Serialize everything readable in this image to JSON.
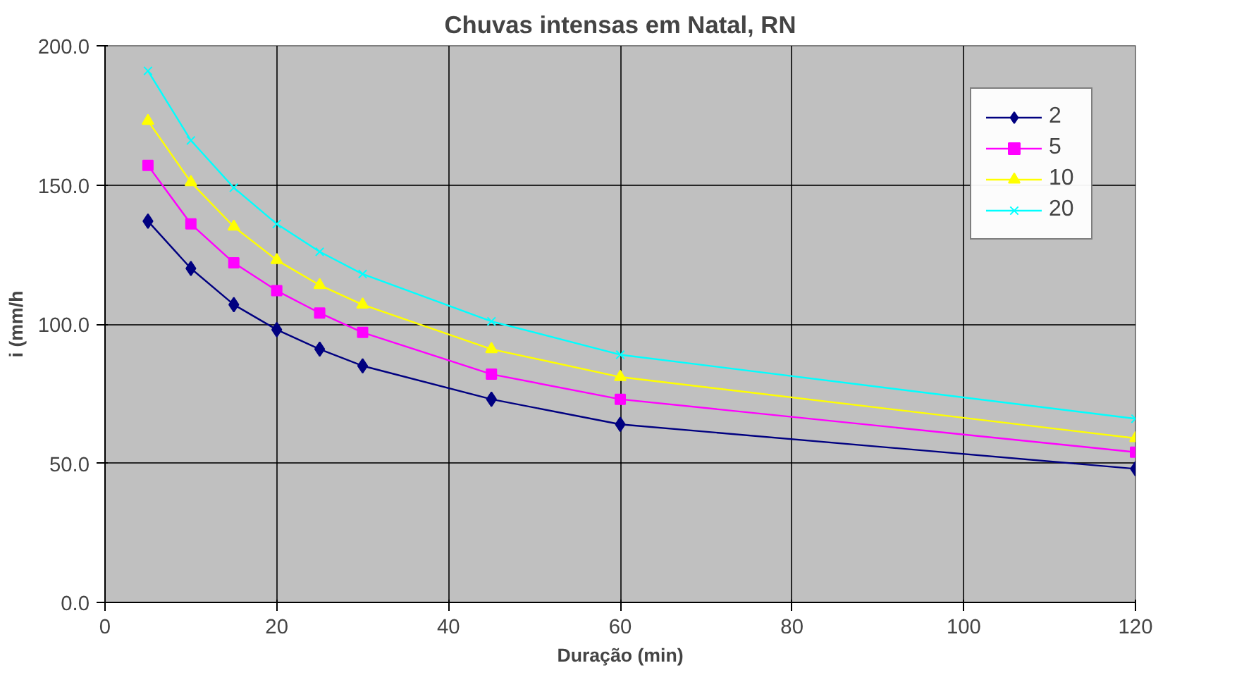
{
  "chart_data": {
    "type": "line",
    "title": "Chuvas intensas em Natal, RN",
    "xlabel": "Duração (min)",
    "ylabel": "i (mm/h",
    "x": [
      5,
      10,
      15,
      20,
      25,
      30,
      45,
      60,
      120
    ],
    "series": [
      {
        "name": "2",
        "color": "#000080",
        "marker": "diamond",
        "values": [
          137,
          120,
          107,
          98,
          91,
          85,
          73,
          64,
          48
        ]
      },
      {
        "name": "5",
        "color": "#ff00ff",
        "marker": "square",
        "values": [
          157,
          136,
          122,
          112,
          104,
          97,
          82,
          73,
          54
        ]
      },
      {
        "name": "10",
        "color": "#ffff00",
        "marker": "triangle",
        "values": [
          173,
          151,
          135,
          123,
          114,
          107,
          91,
          81,
          59
        ]
      },
      {
        "name": "20",
        "color": "#00ffff",
        "marker": "cross",
        "values": [
          191,
          166,
          149,
          136,
          126,
          118,
          101,
          89,
          66
        ]
      }
    ],
    "xlim": [
      0,
      120
    ],
    "xticks": [
      0,
      20,
      40,
      60,
      80,
      100,
      120
    ],
    "ylim": [
      0,
      200
    ],
    "yticks": [
      {
        "value": 0,
        "label": "0.0"
      },
      {
        "value": 50,
        "label": "50.0"
      },
      {
        "value": 100,
        "label": "100.0"
      },
      {
        "value": 150,
        "label": "150.0"
      },
      {
        "value": 200,
        "label": "200.0"
      }
    ],
    "grid": true,
    "legend": "top right"
  }
}
